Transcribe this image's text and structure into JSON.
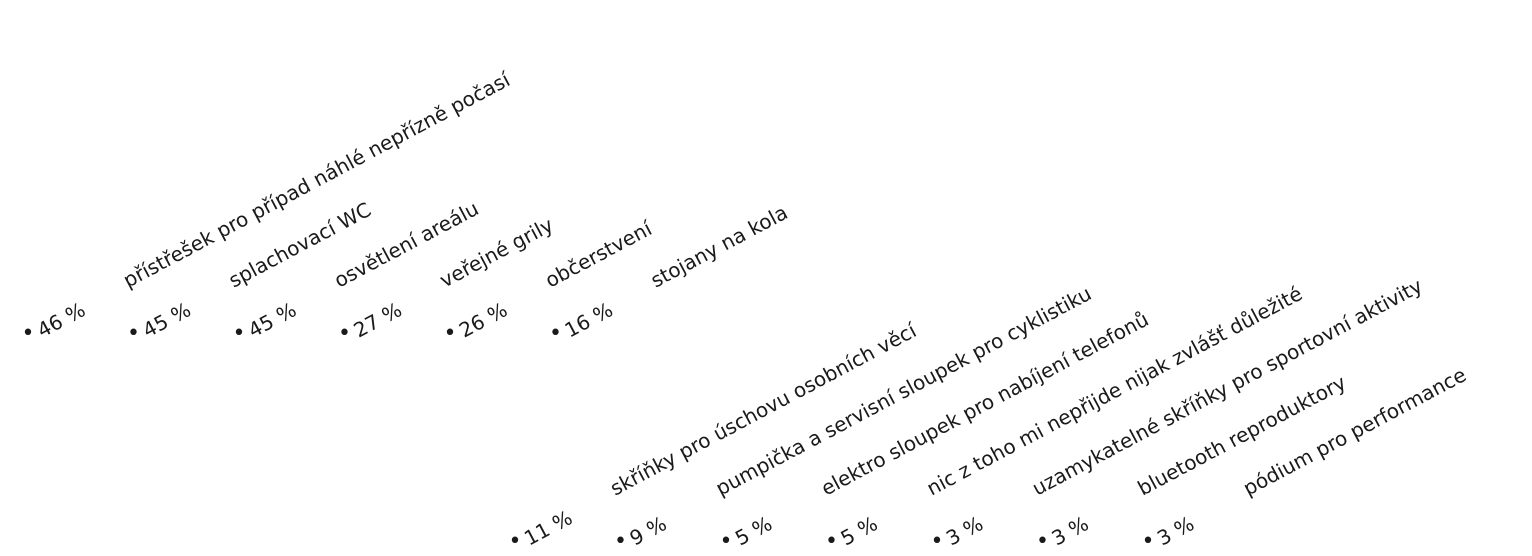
{
  "chart_data": {
    "type": "bar",
    "title": "",
    "xlabel": "",
    "ylabel": "",
    "categories": [
      "přístřešek pro případ náhlé nepřízně počasí",
      "splachovací WC",
      "osvětlení areálu",
      "veřejné grily",
      "občerstvení",
      "stojany na kola",
      "skříňky pro úschovu osobních věcí",
      "pumpička a servisní sloupek pro cyklistiku",
      "elektro sloupek pro nabíjení telefonů",
      "nic z toho mi nepřijde nijak zvlášť důležité",
      "uzamykatelné skříňky pro sportovní aktivity",
      "bluetooth reproduktory",
      "pódium pro performance"
    ],
    "values": [
      46,
      45,
      45,
      27,
      26,
      16,
      11,
      9,
      5,
      5,
      3,
      3,
      3
    ],
    "labels": [
      "46 %",
      "45 %",
      "45 %",
      "27 %",
      "26 %",
      "16 %",
      "11 %",
      "9 %",
      "5 %",
      "5 %",
      "3 %",
      "3 %",
      "3 %"
    ],
    "bullet": "•",
    "label_rotation_deg": -28
  }
}
